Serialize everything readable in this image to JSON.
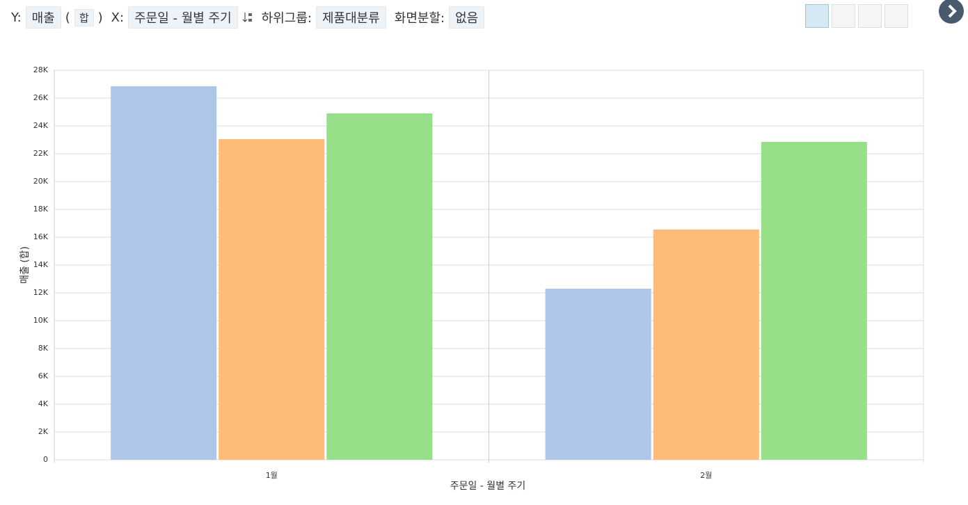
{
  "toolbar": {
    "y_label": "Y:",
    "y_field": "매출",
    "open_paren": "(",
    "aggregate": "합",
    "close_paren": ")",
    "x_label": "X:",
    "x_field": "주문일 - 월별 주기",
    "subgroup_label": "하위그룹:",
    "subgroup_field": "제품대분류",
    "split_label": "화면분할:",
    "split_field": "없음"
  },
  "chart_data": {
    "type": "bar",
    "xlabel": "주문일 - 월별 주기",
    "ylabel": "매출 (합)",
    "categories": [
      "1월",
      "2월"
    ],
    "series": [
      {
        "color": "#aec7e8",
        "values": [
          26850,
          12300
        ]
      },
      {
        "color": "#ffbb78",
        "values": [
          23050,
          16550
        ]
      },
      {
        "color": "#98df8a",
        "values": [
          24900,
          22850
        ]
      }
    ],
    "ylim": [
      0,
      28000
    ],
    "yticks": [
      0,
      {
        "value": 2000,
        "label": "2K"
      },
      {
        "value": 4000,
        "label": "4K"
      },
      {
        "value": 6000,
        "label": "6K"
      },
      {
        "value": 8000,
        "label": "8K"
      },
      {
        "value": 10000,
        "label": "10K"
      },
      {
        "value": 12000,
        "label": "12K"
      },
      {
        "value": 14000,
        "label": "14K"
      },
      {
        "value": 16000,
        "label": "16K"
      },
      {
        "value": 18000,
        "label": "18K"
      },
      {
        "value": 20000,
        "label": "20K"
      },
      {
        "value": 22000,
        "label": "22K"
      },
      {
        "value": 24000,
        "label": "24K"
      },
      {
        "value": 26000,
        "label": "26K"
      },
      {
        "value": 28000,
        "label": "28K"
      }
    ],
    "grid": true
  }
}
